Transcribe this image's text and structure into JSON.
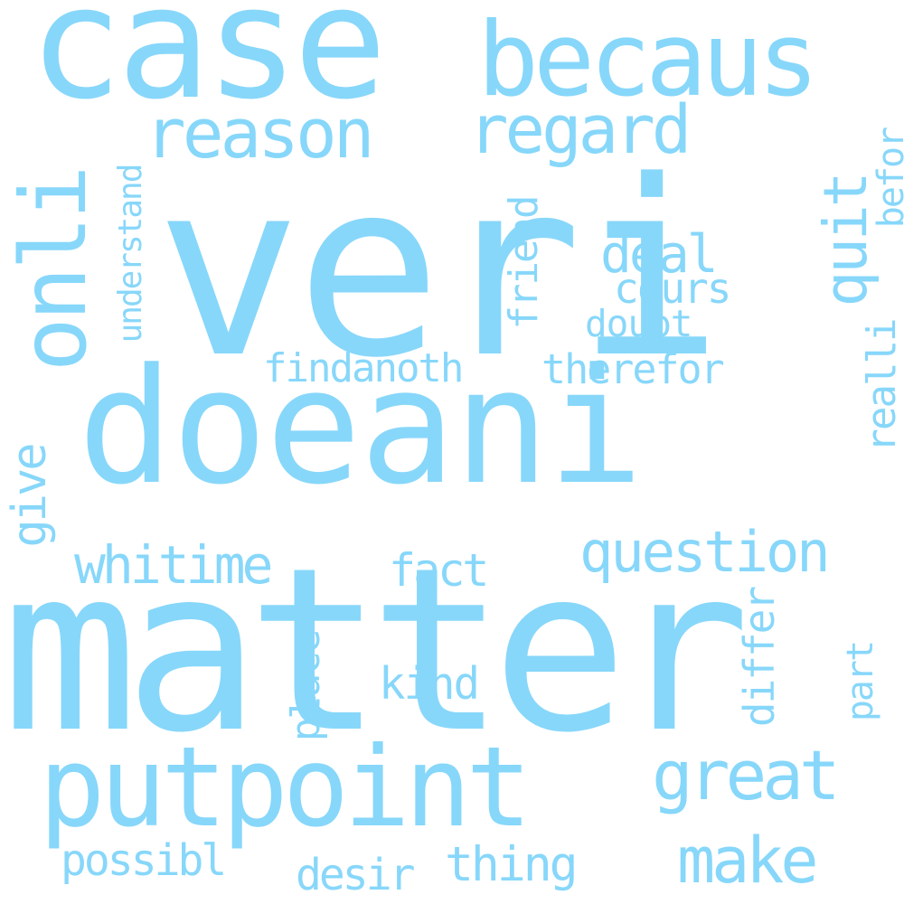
{
  "cloud": {
    "color": "#87d7fa",
    "background": "#ffffff",
    "words": [
      {
        "text": "veri",
        "orientation": "horizontal"
      },
      {
        "text": "doeani",
        "orientation": "horizontal"
      },
      {
        "text": "matter",
        "orientation": "horizontal"
      },
      {
        "text": "case",
        "orientation": "horizontal"
      },
      {
        "text": "becaus",
        "orientation": "horizontal"
      },
      {
        "text": "putpoint",
        "orientation": "horizontal"
      },
      {
        "text": "onli",
        "orientation": "vertical"
      },
      {
        "text": "reason",
        "orientation": "horizontal"
      },
      {
        "text": "regard",
        "orientation": "horizontal"
      },
      {
        "text": "question",
        "orientation": "horizontal"
      },
      {
        "text": "great",
        "orientation": "horizontal"
      },
      {
        "text": "make",
        "orientation": "horizontal"
      },
      {
        "text": "quit",
        "orientation": "vertical"
      },
      {
        "text": "deal",
        "orientation": "horizontal"
      },
      {
        "text": "cours",
        "orientation": "horizontal"
      },
      {
        "text": "doubt",
        "orientation": "horizontal"
      },
      {
        "text": "findanoth",
        "orientation": "horizontal"
      },
      {
        "text": "therefor",
        "orientation": "horizontal"
      },
      {
        "text": "whitime",
        "orientation": "horizontal"
      },
      {
        "text": "fact",
        "orientation": "horizontal"
      },
      {
        "text": "kind",
        "orientation": "horizontal"
      },
      {
        "text": "possibl",
        "orientation": "horizontal"
      },
      {
        "text": "desir",
        "orientation": "horizontal"
      },
      {
        "text": "thing",
        "orientation": "horizontal"
      },
      {
        "text": "understand",
        "orientation": "vertical"
      },
      {
        "text": "friend",
        "orientation": "vertical"
      },
      {
        "text": "befor",
        "orientation": "vertical"
      },
      {
        "text": "realli",
        "orientation": "vertical"
      },
      {
        "text": "give",
        "orientation": "vertical"
      },
      {
        "text": "place",
        "orientation": "vertical"
      },
      {
        "text": "differ",
        "orientation": "vertical"
      },
      {
        "text": "part",
        "orientation": "vertical"
      }
    ]
  }
}
